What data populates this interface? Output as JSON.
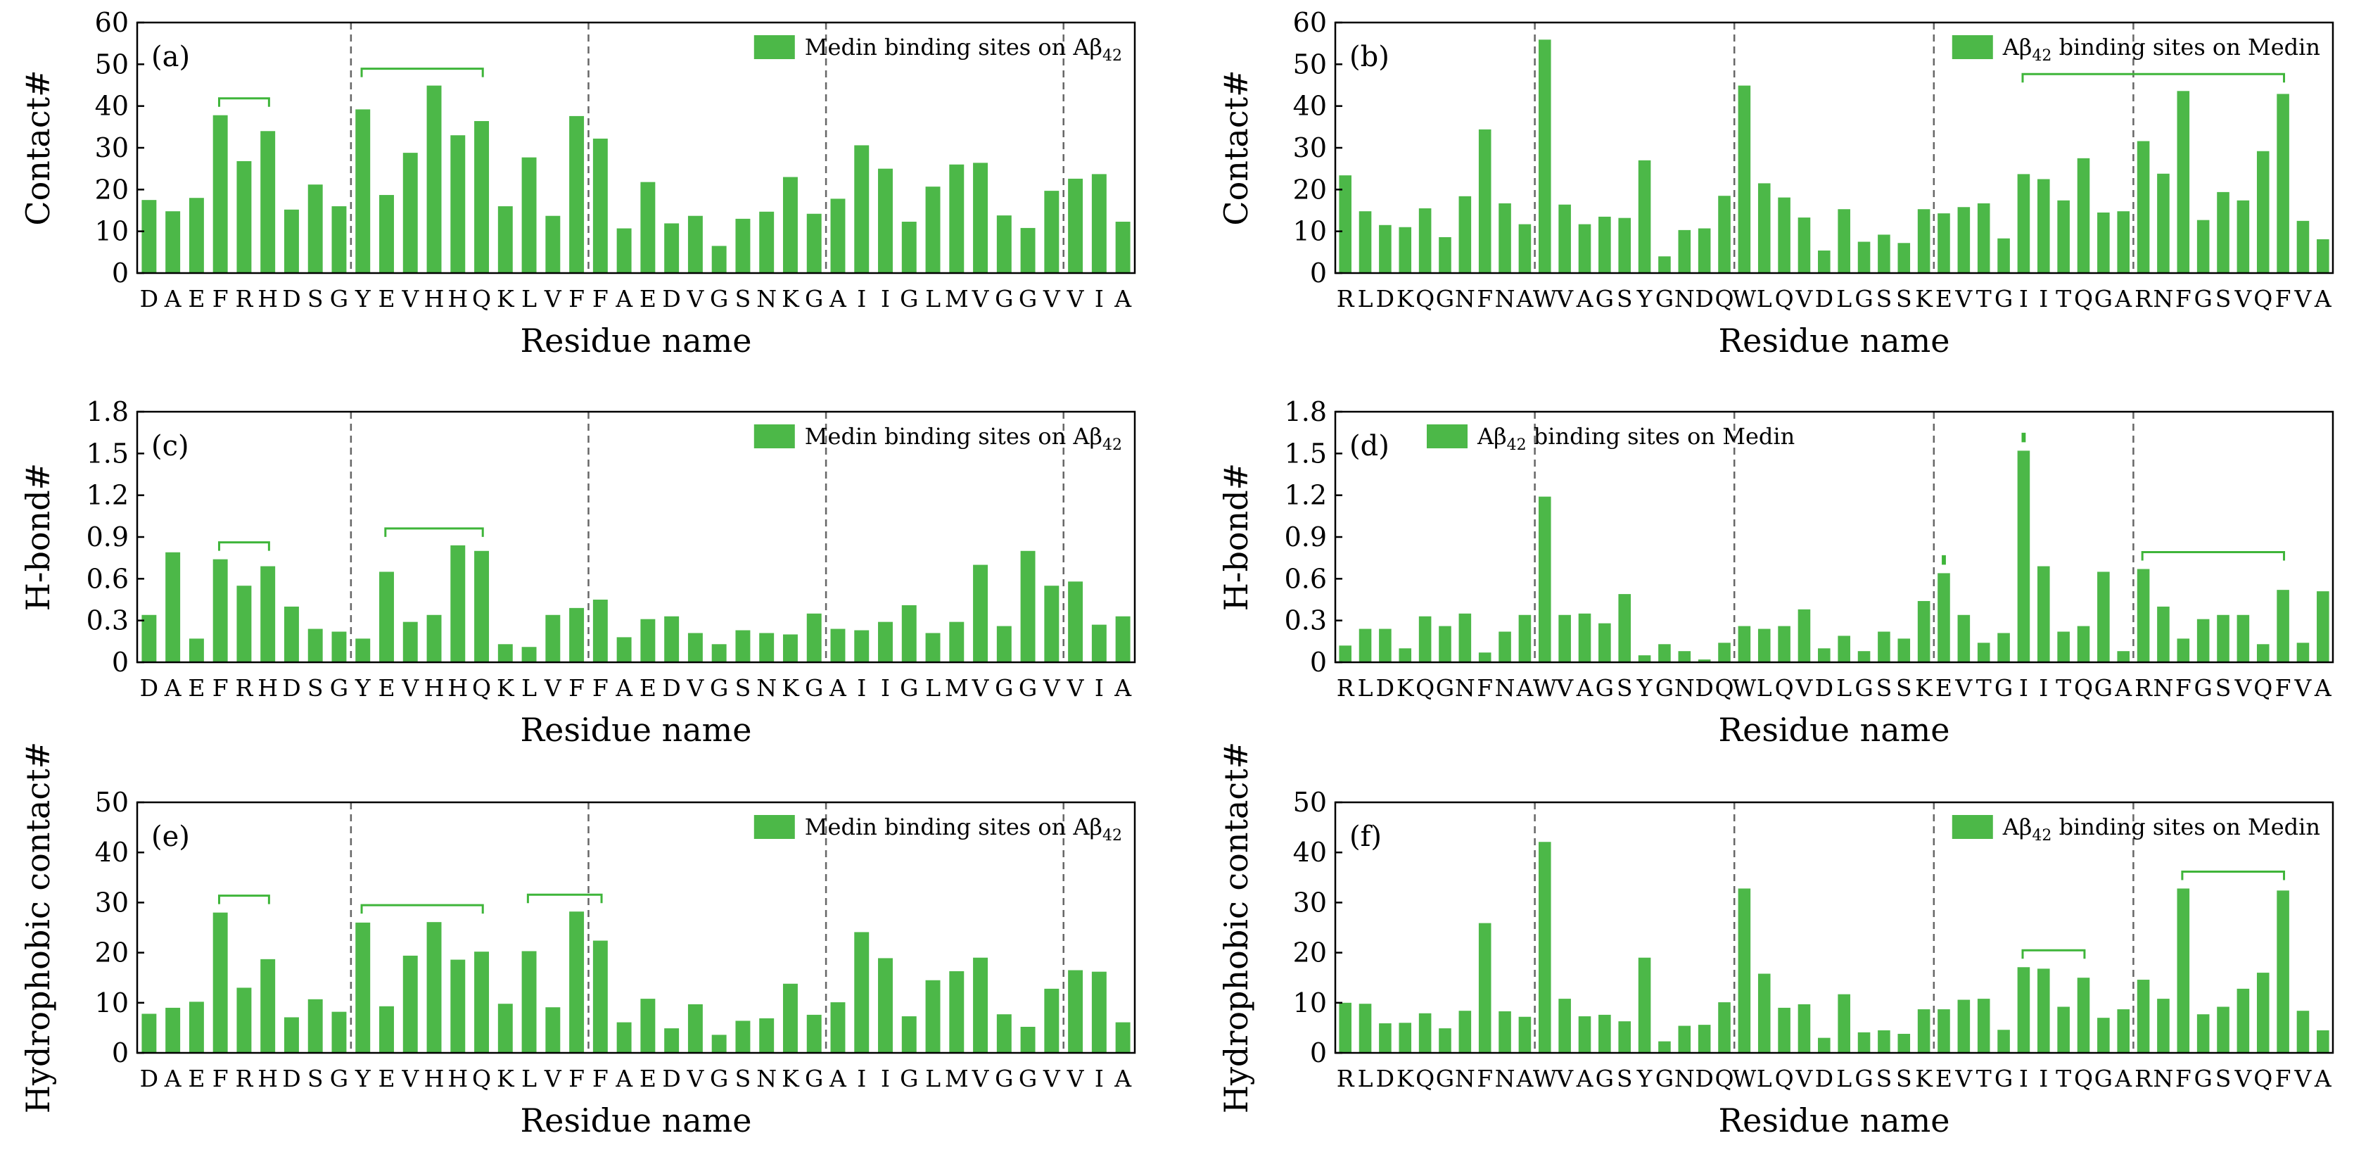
{
  "colors": {
    "bar": "#4cb848",
    "bracket": "#3fb53a",
    "guide": "#666666"
  },
  "chart_data": [
    {
      "type": "bar",
      "tag": "(a)",
      "ylabel": "Contact#",
      "xlabel": "Residue name",
      "ylim": [
        0,
        60
      ],
      "yticks": [
        "0",
        "10",
        "20",
        "30",
        "40",
        "50",
        "60"
      ],
      "legend": {
        "text": "Medin binding sites on Aβ",
        "sub": "42",
        "placement": "top-right"
      },
      "categories": [
        "D",
        "A",
        "E",
        "F",
        "R",
        "H",
        "D",
        "S",
        "G",
        "Y",
        "E",
        "V",
        "H",
        "H",
        "Q",
        "K",
        "L",
        "V",
        "F",
        "F",
        "A",
        "E",
        "D",
        "V",
        "G",
        "S",
        "N",
        "K",
        "G",
        "A",
        "I",
        "I",
        "G",
        "L",
        "M",
        "V",
        "G",
        "G",
        "V",
        "V",
        "I",
        "A"
      ],
      "values": [
        17.5,
        14.8,
        18,
        37.8,
        26.8,
        34,
        15.2,
        21.2,
        16,
        39.2,
        18.7,
        28.8,
        44.9,
        33,
        36.4,
        16,
        27.7,
        13.7,
        37.6,
        32.2,
        10.7,
        21.8,
        11.9,
        13.7,
        6.5,
        13,
        14.7,
        23,
        14.2,
        17.8,
        30.6,
        25,
        12.3,
        20.7,
        26,
        26.4,
        13.8,
        10.8,
        19.7,
        22.6,
        23.7,
        12.3
      ],
      "guides_after": [
        8,
        18,
        28,
        38
      ],
      "brackets": [
        [
          3,
          5
        ],
        [
          9,
          14
        ]
      ]
    },
    {
      "type": "bar",
      "tag": "(b)",
      "ylabel": "Contact#",
      "xlabel": "Residue name",
      "ylim": [
        0,
        60
      ],
      "yticks": [
        "0",
        "10",
        "20",
        "30",
        "40",
        "50",
        "60"
      ],
      "legend": {
        "text": "Aβ",
        "sub": "42",
        "text2": " binding sites on Medin",
        "placement": "top-right"
      },
      "categories": [
        "R",
        "L",
        "D",
        "K",
        "Q",
        "G",
        "N",
        "F",
        "N",
        "A",
        "W",
        "V",
        "A",
        "G",
        "S",
        "Y",
        "G",
        "N",
        "D",
        "Q",
        "W",
        "L",
        "Q",
        "V",
        "D",
        "L",
        "G",
        "S",
        "S",
        "K",
        "E",
        "V",
        "T",
        "G",
        "I",
        "I",
        "T",
        "Q",
        "G",
        "A",
        "R",
        "N",
        "F",
        "G",
        "S",
        "V",
        "Q",
        "F",
        "V",
        "A"
      ],
      "values": [
        23.4,
        14.8,
        11.5,
        11,
        15.5,
        8.6,
        18.4,
        34.4,
        16.7,
        11.7,
        55.9,
        16.4,
        11.7,
        13.5,
        13.2,
        27,
        4,
        10.3,
        10.7,
        18.5,
        44.9,
        21.5,
        18.1,
        13.3,
        5.4,
        15.3,
        7.5,
        9.2,
        7.2,
        15.3,
        14.3,
        15.8,
        16.7,
        8.3,
        23.7,
        22.5,
        17.4,
        27.5,
        14.5,
        14.8,
        31.6,
        23.8,
        43.6,
        12.7,
        19.4,
        17.4,
        29.2,
        42.9,
        12.5,
        8.1
      ],
      "guides_after": [
        9,
        19,
        29,
        39
      ],
      "brackets": [
        [
          34,
          47
        ]
      ]
    },
    {
      "type": "bar",
      "tag": "(c)",
      "ylabel": "H-bond#",
      "xlabel": "Residue name",
      "ylim": [
        0,
        1.8
      ],
      "yticks": [
        "0",
        "0.3",
        "0.6",
        "0.9",
        "1.2",
        "1.5",
        "1.8"
      ],
      "legend": {
        "text": "Medin binding sites on Aβ",
        "sub": "42",
        "placement": "top-right"
      },
      "categories": [
        "D",
        "A",
        "E",
        "F",
        "R",
        "H",
        "D",
        "S",
        "G",
        "Y",
        "E",
        "V",
        "H",
        "H",
        "Q",
        "K",
        "L",
        "V",
        "F",
        "F",
        "A",
        "E",
        "D",
        "V",
        "G",
        "S",
        "N",
        "K",
        "G",
        "A",
        "I",
        "I",
        "G",
        "L",
        "M",
        "V",
        "G",
        "G",
        "V",
        "V",
        "I",
        "A"
      ],
      "values": [
        0.34,
        0.79,
        0.17,
        0.74,
        0.55,
        0.69,
        0.4,
        0.24,
        0.22,
        0.17,
        0.65,
        0.29,
        0.34,
        0.84,
        0.8,
        0.13,
        0.11,
        0.34,
        0.39,
        0.45,
        0.18,
        0.31,
        0.33,
        0.21,
        0.13,
        0.23,
        0.21,
        0.2,
        0.35,
        0.24,
        0.23,
        0.29,
        0.41,
        0.21,
        0.29,
        0.7,
        0.26,
        0.8,
        0.55,
        0.58,
        0.27,
        0.33
      ],
      "guides_after": [
        8,
        18,
        28,
        38
      ],
      "brackets": [
        [
          3,
          5
        ],
        [
          10,
          14
        ]
      ]
    },
    {
      "type": "bar",
      "tag": "(d)",
      "ylabel": "H-bond#",
      "xlabel": "Residue name",
      "ylim": [
        0,
        1.8
      ],
      "yticks": [
        "0",
        "0.3",
        "0.6",
        "0.9",
        "1.2",
        "1.5",
        "1.8"
      ],
      "legend": {
        "text": "Aβ",
        "sub": "42",
        "text2": " binding sites on Medin",
        "placement": "top-left"
      },
      "categories": [
        "R",
        "L",
        "D",
        "K",
        "Q",
        "G",
        "N",
        "F",
        "N",
        "A",
        "W",
        "V",
        "A",
        "G",
        "S",
        "Y",
        "G",
        "N",
        "D",
        "Q",
        "W",
        "L",
        "Q",
        "V",
        "D",
        "L",
        "G",
        "S",
        "S",
        "K",
        "E",
        "V",
        "T",
        "G",
        "I",
        "I",
        "T",
        "Q",
        "G",
        "A",
        "R",
        "N",
        "F",
        "G",
        "S",
        "V",
        "Q",
        "F",
        "V",
        "A"
      ],
      "values": [
        0.12,
        0.24,
        0.24,
        0.1,
        0.33,
        0.26,
        0.35,
        0.07,
        0.22,
        0.34,
        1.19,
        0.34,
        0.35,
        0.28,
        0.49,
        0.05,
        0.13,
        0.08,
        0.02,
        0.14,
        0.26,
        0.24,
        0.26,
        0.38,
        0.1,
        0.19,
        0.08,
        0.22,
        0.17,
        0.44,
        0.64,
        0.34,
        0.14,
        0.21,
        1.52,
        0.69,
        0.22,
        0.26,
        0.65,
        0.08,
        0.67,
        0.4,
        0.17,
        0.31,
        0.34,
        0.34,
        0.13,
        0.52,
        0.14,
        0.51
      ],
      "guides_after": [
        9,
        19,
        29,
        39
      ],
      "brackets": [
        [
          30,
          30
        ],
        [
          34,
          34
        ],
        [
          40,
          47
        ]
      ]
    },
    {
      "type": "bar",
      "tag": "(e)",
      "ylabel": "Hydrophobic contact#",
      "xlabel": "Residue name",
      "ylim": [
        0,
        50
      ],
      "yticks": [
        "0",
        "10",
        "20",
        "30",
        "40",
        "50"
      ],
      "legend": {
        "text": "Medin binding sites on Aβ",
        "sub": "42",
        "placement": "top-right"
      },
      "categories": [
        "D",
        "A",
        "E",
        "F",
        "R",
        "H",
        "D",
        "S",
        "G",
        "Y",
        "E",
        "V",
        "H",
        "H",
        "Q",
        "K",
        "L",
        "V",
        "F",
        "F",
        "A",
        "E",
        "D",
        "V",
        "G",
        "S",
        "N",
        "K",
        "G",
        "A",
        "I",
        "I",
        "G",
        "L",
        "M",
        "V",
        "G",
        "G",
        "V",
        "V",
        "I",
        "A"
      ],
      "values": [
        7.8,
        9,
        10.2,
        28,
        13,
        18.7,
        7.1,
        10.7,
        8.2,
        26,
        9.3,
        19.4,
        26.1,
        18.6,
        20.2,
        9.8,
        20.3,
        9.1,
        28.2,
        22.4,
        6.1,
        10.8,
        4.9,
        9.7,
        3.6,
        6.4,
        6.9,
        13.8,
        7.6,
        10.1,
        24.1,
        18.9,
        7.3,
        14.5,
        16.3,
        19,
        7.7,
        5.2,
        12.8,
        16.5,
        16.2,
        6.1
      ],
      "guides_after": [
        8,
        18,
        28,
        38
      ],
      "brackets": [
        [
          3,
          5
        ],
        [
          9,
          14
        ],
        [
          16,
          19
        ]
      ]
    },
    {
      "type": "bar",
      "tag": "(f)",
      "ylabel": "Hydrophobic contact#",
      "xlabel": "Residue name",
      "ylim": [
        0,
        50
      ],
      "yticks": [
        "0",
        "10",
        "20",
        "30",
        "40",
        "50"
      ],
      "legend": {
        "text": "Aβ",
        "sub": "42",
        "text2": " binding sites on Medin",
        "placement": "top-right"
      },
      "categories": [
        "R",
        "L",
        "D",
        "K",
        "Q",
        "G",
        "N",
        "F",
        "N",
        "A",
        "W",
        "V",
        "A",
        "G",
        "S",
        "Y",
        "G",
        "N",
        "D",
        "Q",
        "W",
        "L",
        "Q",
        "V",
        "D",
        "L",
        "G",
        "S",
        "S",
        "K",
        "E",
        "V",
        "T",
        "G",
        "I",
        "I",
        "T",
        "Q",
        "G",
        "A",
        "R",
        "N",
        "F",
        "G",
        "S",
        "V",
        "Q",
        "F",
        "V",
        "A"
      ],
      "values": [
        10,
        9.8,
        5.9,
        6,
        7.9,
        4.9,
        8.4,
        25.9,
        8.3,
        7.2,
        42.1,
        10.8,
        7.3,
        7.6,
        6.3,
        19,
        2.3,
        5.4,
        5.6,
        10.1,
        32.8,
        15.8,
        9,
        9.7,
        3,
        11.7,
        4.1,
        4.5,
        3.8,
        8.7,
        8.7,
        10.6,
        10.8,
        4.6,
        17.1,
        16.8,
        9.2,
        15,
        7,
        8.7,
        14.6,
        10.8,
        32.8,
        7.7,
        9.2,
        12.8,
        16,
        32.4,
        8.4,
        4.5
      ],
      "guides_after": [
        9,
        19,
        29,
        39
      ],
      "brackets": [
        [
          34,
          37
        ],
        [
          42,
          47
        ]
      ]
    }
  ]
}
